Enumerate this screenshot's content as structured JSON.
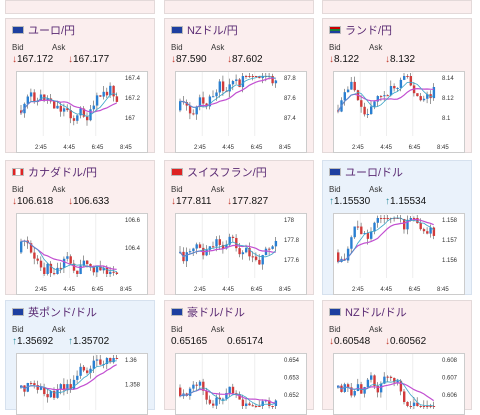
{
  "labels": {
    "bid": "Bid",
    "ask": "Ask"
  },
  "cards": [
    {
      "name": "ユーロ/円",
      "bid": "↓167.172",
      "ask": "↓167.177",
      "dir": "down",
      "bg": "red",
      "flag": "eu",
      "times": [
        "2:45",
        "4:45",
        "6:45",
        "8:45"
      ],
      "yticks": [
        "167.4",
        "167.2",
        "167"
      ]
    },
    {
      "name": "NZドル/円",
      "bid": "↓87.590",
      "ask": "↓87.602",
      "dir": "down",
      "bg": "red",
      "flag": "nz",
      "times": [
        "2:45",
        "4:45",
        "6:45",
        "8:45"
      ],
      "yticks": [
        "87.8",
        "87.6",
        "87.4"
      ]
    },
    {
      "name": "ランド/円",
      "bid": "↓8.122",
      "ask": "↓8.132",
      "dir": "down",
      "bg": "red",
      "flag": "za",
      "times": [
        "2:45",
        "4:45",
        "6:45",
        "8:45"
      ],
      "yticks": [
        "8.14",
        "8.12",
        "8.1"
      ]
    },
    {
      "name": "カナダドル/円",
      "bid": "↓106.618",
      "ask": "↓106.633",
      "dir": "down",
      "bg": "red",
      "flag": "ca",
      "times": [
        "2:45",
        "4:45",
        "6:45",
        "8:45"
      ],
      "yticks": [
        "106.6",
        "106.4"
      ]
    },
    {
      "name": "スイスフラン/円",
      "bid": "↓177.811",
      "ask": "↓177.827",
      "dir": "down",
      "bg": "red",
      "flag": "ch",
      "times": [
        "2:45",
        "4:45",
        "6:45",
        "8:45"
      ],
      "yticks": [
        "178",
        "177.8",
        "177.6"
      ]
    },
    {
      "name": "ユーロ/ドル",
      "bid": "↑1.15530",
      "ask": "↑1.15534",
      "dir": "up",
      "bg": "blue",
      "flag": "eu",
      "times": [
        "2:45",
        "4:45",
        "6:45",
        "8:45"
      ],
      "yticks": [
        "1.158",
        "1.157",
        "1.156"
      ]
    },
    {
      "name": "英ポンド/ドル",
      "bid": "↑1.35692",
      "ask": "↑1.35702",
      "dir": "up",
      "bg": "blue",
      "flag": "gb",
      "times": [],
      "yticks": [
        "1.36",
        "1.358"
      ]
    },
    {
      "name": "豪ドル/ドル",
      "bid": "0.65165",
      "ask": "0.65174",
      "dir": "none",
      "bg": "red",
      "flag": "au",
      "times": [],
      "yticks": [
        "0.654",
        "0.653",
        "0.652"
      ]
    },
    {
      "name": "NZドル/ドル",
      "bid": "↓0.60548",
      "ask": "↓0.60562",
      "dir": "down",
      "bg": "red",
      "flag": "nz",
      "times": [],
      "yticks": [
        "0.608",
        "0.607",
        "0.606"
      ]
    }
  ],
  "colors": {
    "up": "#2a8b9c",
    "down": "#c0392b",
    "ma": "#c24fd1",
    "bull": "#2a7fd1",
    "bear": "#d13a3a"
  }
}
